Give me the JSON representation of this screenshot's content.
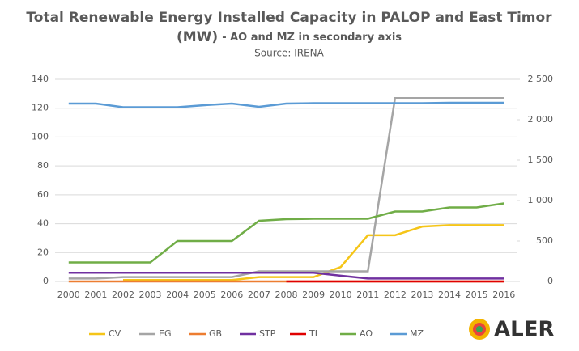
{
  "chart_data": {
    "type": "line",
    "title": [
      "Total Renewable Energy Installed Capacity in PALOP and East Timor",
      "(MW)"
    ],
    "subtitle": "- AO and MZ in secondary axis",
    "source": "Source: IRENA",
    "logo": "ALER",
    "categories": [
      "2000",
      "2001",
      "2002",
      "2003",
      "2004",
      "2005",
      "2006",
      "2007",
      "2008",
      "2009",
      "2010",
      "2011",
      "2012",
      "2013",
      "2014",
      "2015",
      "2016"
    ],
    "ylim": [
      0,
      140
    ],
    "yticks": [
      0,
      20,
      40,
      60,
      80,
      100,
      120,
      140
    ],
    "y2lim": [
      0,
      2500
    ],
    "y2ticks": [
      0,
      500,
      {
        "value": 1000,
        "label": "1 000"
      },
      {
        "value": 1500,
        "label": "1 500"
      },
      {
        "value": 2000,
        "label": "2 000"
      },
      {
        "value": 2500,
        "label": "2 500"
      }
    ],
    "grid": true,
    "legend": "bottom",
    "series": [
      {
        "name": "CV",
        "color": "#f5c518",
        "values": [
          null,
          null,
          1,
          1,
          1,
          1,
          1,
          3,
          3,
          3,
          10,
          32,
          32,
          38,
          39,
          39,
          39
        ]
      },
      {
        "name": "EG",
        "color": "#a5a5a5",
        "values": [
          2,
          2,
          3,
          3,
          3,
          3,
          3,
          7,
          7,
          7,
          7,
          7,
          127,
          127,
          127,
          127,
          127
        ]
      },
      {
        "name": "GB",
        "color": "#ed7d31",
        "values": [
          0,
          0,
          0,
          0,
          0,
          0,
          0,
          0,
          0,
          0,
          0,
          0,
          0,
          0,
          0,
          0,
          0
        ]
      },
      {
        "name": "STP",
        "color": "#7030a0",
        "values": [
          6,
          6,
          6,
          6,
          6,
          6,
          6,
          6,
          6,
          6,
          4,
          2,
          2,
          2,
          2,
          2,
          2
        ]
      },
      {
        "name": "TL",
        "color": "#e00000",
        "values": [
          null,
          null,
          null,
          null,
          null,
          null,
          null,
          null,
          0,
          0,
          0,
          0,
          0,
          0,
          0,
          0,
          0
        ]
      },
      {
        "name": "AO",
        "color": "#70ad47",
        "axis": "y2",
        "values": [
          235,
          235,
          235,
          235,
          500,
          500,
          500,
          750,
          770,
          775,
          775,
          775,
          865,
          865,
          915,
          915,
          965
        ]
      },
      {
        "name": "MZ",
        "color": "#5b9bd5",
        "axis": "y2",
        "values": [
          2200,
          2200,
          2155,
          2155,
          2155,
          2180,
          2200,
          2160,
          2200,
          2205,
          2205,
          2205,
          2205,
          2205,
          2210,
          2210,
          2210
        ]
      }
    ]
  }
}
